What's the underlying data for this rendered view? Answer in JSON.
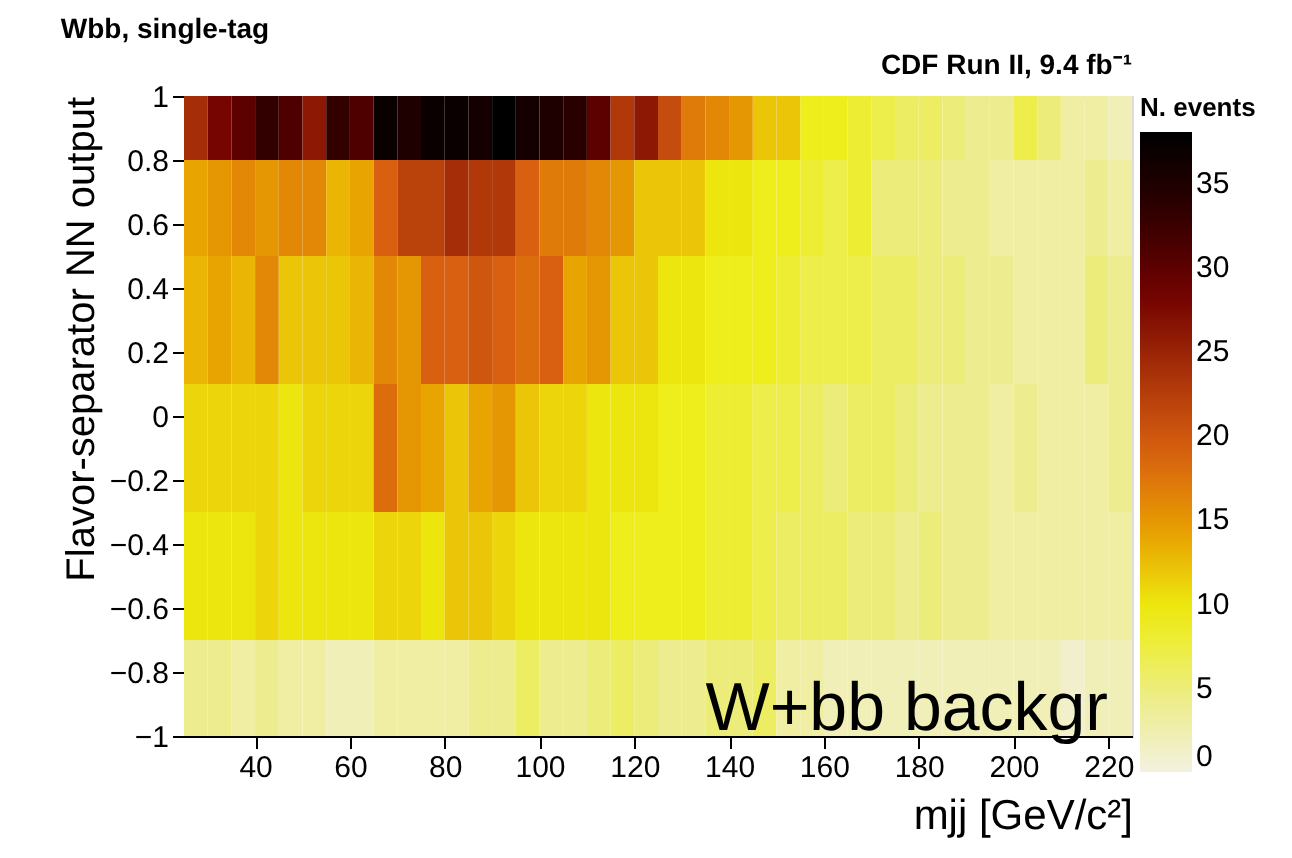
{
  "chart_data": {
    "type": "heatmap",
    "title": "Wbb, single-tag",
    "xlabel": "mjj [GeV/c²]",
    "ylabel": "Flavor-separator NN output",
    "legend_title": "N. events",
    "annotations": [
      "CDF Run II, 9.4 fb⁻¹",
      "W+bb backgr"
    ],
    "cells": [
      [
        24,
        28,
        30,
        33,
        31,
        26,
        33,
        31,
        37,
        35,
        37,
        37,
        36,
        38,
        36,
        35,
        34,
        30,
        23,
        26,
        21,
        17,
        16,
        15,
        12,
        12,
        9,
        9,
        8,
        7,
        6,
        6,
        5,
        4,
        4,
        7,
        5,
        3,
        3,
        2
      ],
      [
        24,
        28,
        30,
        33,
        31,
        26,
        33,
        31,
        37,
        35,
        37,
        37,
        36,
        38,
        36,
        35,
        34,
        30,
        23,
        26,
        21,
        17,
        16,
        15,
        12,
        12,
        9,
        9,
        8,
        7,
        6,
        6,
        5,
        4,
        4,
        7,
        5,
        3,
        3,
        2
      ],
      [
        14,
        15,
        16,
        15,
        16,
        16,
        13,
        14,
        19,
        22,
        22,
        24,
        23,
        23,
        19,
        17,
        17,
        16,
        15,
        12,
        12,
        12,
        10,
        10,
        9,
        9,
        8,
        7,
        8,
        5,
        5,
        5,
        4,
        4,
        3,
        3,
        3,
        3,
        4,
        3
      ],
      [
        14,
        15,
        16,
        15,
        16,
        16,
        13,
        14,
        19,
        22,
        22,
        24,
        23,
        23,
        19,
        17,
        17,
        16,
        15,
        12,
        12,
        12,
        10,
        10,
        9,
        9,
        8,
        7,
        8,
        5,
        5,
        5,
        4,
        4,
        3,
        3,
        3,
        3,
        4,
        3
      ],
      [
        14,
        15,
        16,
        15,
        16,
        16,
        13,
        14,
        19,
        22,
        22,
        24,
        23,
        23,
        19,
        17,
        17,
        16,
        15,
        12,
        12,
        12,
        10,
        10,
        9,
        9,
        8,
        7,
        8,
        5,
        5,
        5,
        4,
        4,
        3,
        3,
        3,
        3,
        4,
        3
      ],
      [
        13,
        14,
        13,
        16,
        12,
        12,
        12,
        13,
        16,
        15,
        19,
        19,
        20,
        19,
        18,
        19,
        14,
        15,
        12,
        12,
        10,
        10,
        9,
        9,
        9,
        8,
        7,
        7,
        7,
        6,
        6,
        5,
        5,
        4,
        4,
        3,
        3,
        3,
        5,
        4
      ],
      [
        13,
        14,
        13,
        16,
        12,
        12,
        12,
        13,
        16,
        15,
        19,
        19,
        20,
        19,
        18,
        19,
        14,
        15,
        12,
        12,
        10,
        10,
        9,
        9,
        9,
        8,
        7,
        7,
        7,
        6,
        6,
        5,
        5,
        4,
        4,
        3,
        3,
        3,
        5,
        4
      ],
      [
        13,
        14,
        13,
        16,
        12,
        12,
        12,
        13,
        16,
        15,
        19,
        19,
        20,
        19,
        18,
        19,
        14,
        15,
        12,
        12,
        10,
        10,
        9,
        9,
        9,
        8,
        7,
        7,
        7,
        6,
        6,
        5,
        5,
        4,
        4,
        3,
        3,
        3,
        5,
        4
      ],
      [
        13,
        14,
        13,
        16,
        12,
        12,
        12,
        13,
        16,
        15,
        19,
        19,
        20,
        19,
        18,
        19,
        14,
        15,
        12,
        12,
        10,
        10,
        9,
        9,
        9,
        8,
        7,
        7,
        7,
        6,
        6,
        5,
        5,
        4,
        4,
        3,
        3,
        3,
        5,
        4
      ],
      [
        11,
        11,
        11,
        11,
        10,
        11,
        11,
        11,
        18,
        15,
        14,
        12,
        14,
        15,
        12,
        11,
        11,
        10,
        10,
        10,
        9,
        9,
        8,
        8,
        7,
        7,
        6,
        5,
        6,
        6,
        5,
        4,
        4,
        4,
        3,
        4,
        3,
        3,
        3,
        4
      ],
      [
        11,
        11,
        11,
        11,
        10,
        11,
        11,
        11,
        18,
        15,
        14,
        12,
        14,
        15,
        12,
        11,
        11,
        10,
        10,
        10,
        9,
        9,
        8,
        8,
        7,
        7,
        6,
        5,
        6,
        6,
        5,
        4,
        4,
        4,
        3,
        4,
        3,
        3,
        3,
        4
      ],
      [
        11,
        11,
        11,
        11,
        10,
        11,
        11,
        11,
        18,
        15,
        14,
        12,
        14,
        15,
        12,
        11,
        11,
        10,
        10,
        10,
        9,
        9,
        8,
        8,
        7,
        7,
        6,
        5,
        6,
        6,
        5,
        4,
        4,
        4,
        3,
        4,
        3,
        3,
        3,
        4
      ],
      [
        11,
        11,
        11,
        11,
        10,
        11,
        11,
        11,
        18,
        15,
        14,
        12,
        14,
        15,
        12,
        11,
        11,
        10,
        10,
        10,
        9,
        9,
        8,
        8,
        7,
        7,
        6,
        5,
        6,
        6,
        5,
        4,
        4,
        4,
        3,
        4,
        3,
        3,
        3,
        4
      ],
      [
        10,
        10,
        10,
        11,
        10,
        10,
        10,
        10,
        11,
        11,
        10,
        12,
        12,
        11,
        10,
        10,
        10,
        10,
        9,
        9,
        9,
        9,
        8,
        8,
        7,
        6,
        6,
        6,
        5,
        5,
        4,
        5,
        4,
        4,
        3,
        3,
        3,
        3,
        3,
        3
      ],
      [
        10,
        10,
        10,
        11,
        10,
        10,
        10,
        10,
        11,
        11,
        10,
        12,
        12,
        11,
        10,
        10,
        10,
        10,
        9,
        9,
        9,
        9,
        8,
        8,
        7,
        6,
        6,
        6,
        5,
        5,
        4,
        5,
        4,
        4,
        3,
        3,
        3,
        3,
        3,
        3
      ],
      [
        10,
        10,
        10,
        11,
        10,
        10,
        10,
        10,
        11,
        11,
        10,
        12,
        12,
        11,
        10,
        10,
        10,
        10,
        9,
        9,
        9,
        9,
        8,
        8,
        7,
        6,
        6,
        6,
        5,
        5,
        4,
        5,
        4,
        4,
        3,
        3,
        3,
        3,
        3,
        3
      ],
      [
        10,
        10,
        10,
        11,
        10,
        10,
        10,
        10,
        11,
        11,
        10,
        12,
        12,
        11,
        10,
        10,
        10,
        10,
        9,
        9,
        9,
        9,
        8,
        8,
        7,
        6,
        6,
        6,
        5,
        5,
        4,
        5,
        4,
        4,
        3,
        3,
        3,
        3,
        3,
        3
      ],
      [
        4,
        4,
        3,
        4,
        3,
        3,
        2,
        2,
        3,
        3,
        3,
        3,
        4,
        4,
        6,
        4,
        4,
        5,
        6,
        5,
        4,
        4,
        5,
        5,
        6,
        3,
        3,
        2,
        2,
        2,
        2,
        2,
        2,
        2,
        2,
        2,
        2,
        1,
        2,
        2
      ],
      [
        4,
        4,
        3,
        4,
        3,
        3,
        2,
        2,
        3,
        3,
        3,
        3,
        4,
        4,
        6,
        4,
        4,
        5,
        6,
        5,
        4,
        4,
        5,
        5,
        6,
        3,
        3,
        2,
        2,
        2,
        2,
        2,
        2,
        2,
        2,
        2,
        2,
        1,
        2,
        2
      ],
      [
        4,
        4,
        3,
        4,
        3,
        3,
        2,
        2,
        3,
        3,
        3,
        3,
        4,
        4,
        6,
        4,
        4,
        5,
        6,
        5,
        4,
        4,
        5,
        5,
        6,
        3,
        3,
        2,
        2,
        2,
        2,
        2,
        2,
        2,
        2,
        2,
        2,
        1,
        2,
        2
      ]
    ],
    "xlim": [
      25,
      225
    ],
    "xticks": [
      40,
      60,
      80,
      100,
      120,
      140,
      160,
      180,
      200,
      220
    ],
    "ylim": [
      -1,
      1
    ],
    "yticks": [
      -1,
      -0.8,
      -0.6,
      -0.4,
      -0.2,
      0,
      0.2,
      0.4,
      0.6,
      0.8,
      1
    ],
    "clim": [
      0,
      38
    ],
    "cticks": [
      0,
      5,
      10,
      15,
      20,
      25,
      30,
      35
    ],
    "grid": false
  }
}
